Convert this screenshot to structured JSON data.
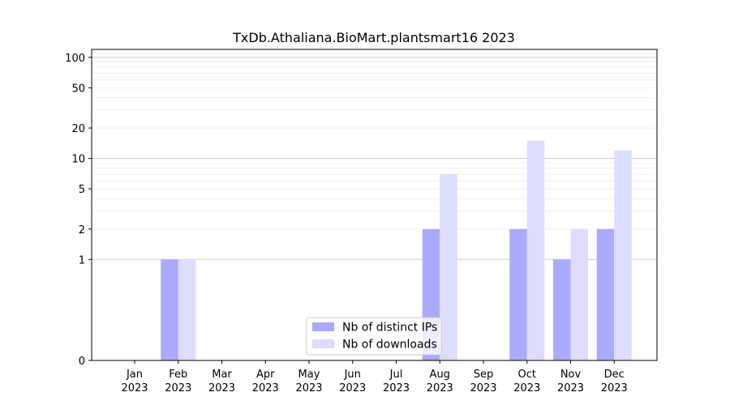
{
  "chart_data": {
    "type": "bar",
    "title": "TxDb.Athaliana.BioMart.plantsmart16 2023",
    "xlabel": "",
    "ylabel": "",
    "yscale": "symlog",
    "ylim": [
      0,
      120
    ],
    "grid": "horizontal",
    "legend_position": "lower-center",
    "categories": [
      "Jan\n2023",
      "Feb\n2023",
      "Mar\n2023",
      "Apr\n2023",
      "May\n2023",
      "Jun\n2023",
      "Jul\n2023",
      "Aug\n2023",
      "Sep\n2023",
      "Oct\n2023",
      "Nov\n2023",
      "Dec\n2023"
    ],
    "yticks": [
      {
        "value": 0,
        "label": "0"
      },
      {
        "value": 1,
        "label": "1"
      },
      {
        "value": 2,
        "label": "2"
      },
      {
        "value": 5,
        "label": "5"
      },
      {
        "value": 10,
        "label": "10"
      },
      {
        "value": 20,
        "label": "20"
      },
      {
        "value": 50,
        "label": "50"
      },
      {
        "value": 100,
        "label": "100"
      }
    ],
    "series": [
      {
        "name": "Nb of distinct IPs",
        "color": "#aaaaff",
        "values": [
          0,
          1,
          0,
          0,
          0,
          0,
          0,
          2,
          0,
          2,
          1,
          2
        ]
      },
      {
        "name": "Nb of downloads",
        "color": "#ddddff",
        "values": [
          0,
          1,
          0,
          0,
          0,
          0,
          0,
          7,
          0,
          15,
          2,
          12
        ]
      }
    ]
  }
}
